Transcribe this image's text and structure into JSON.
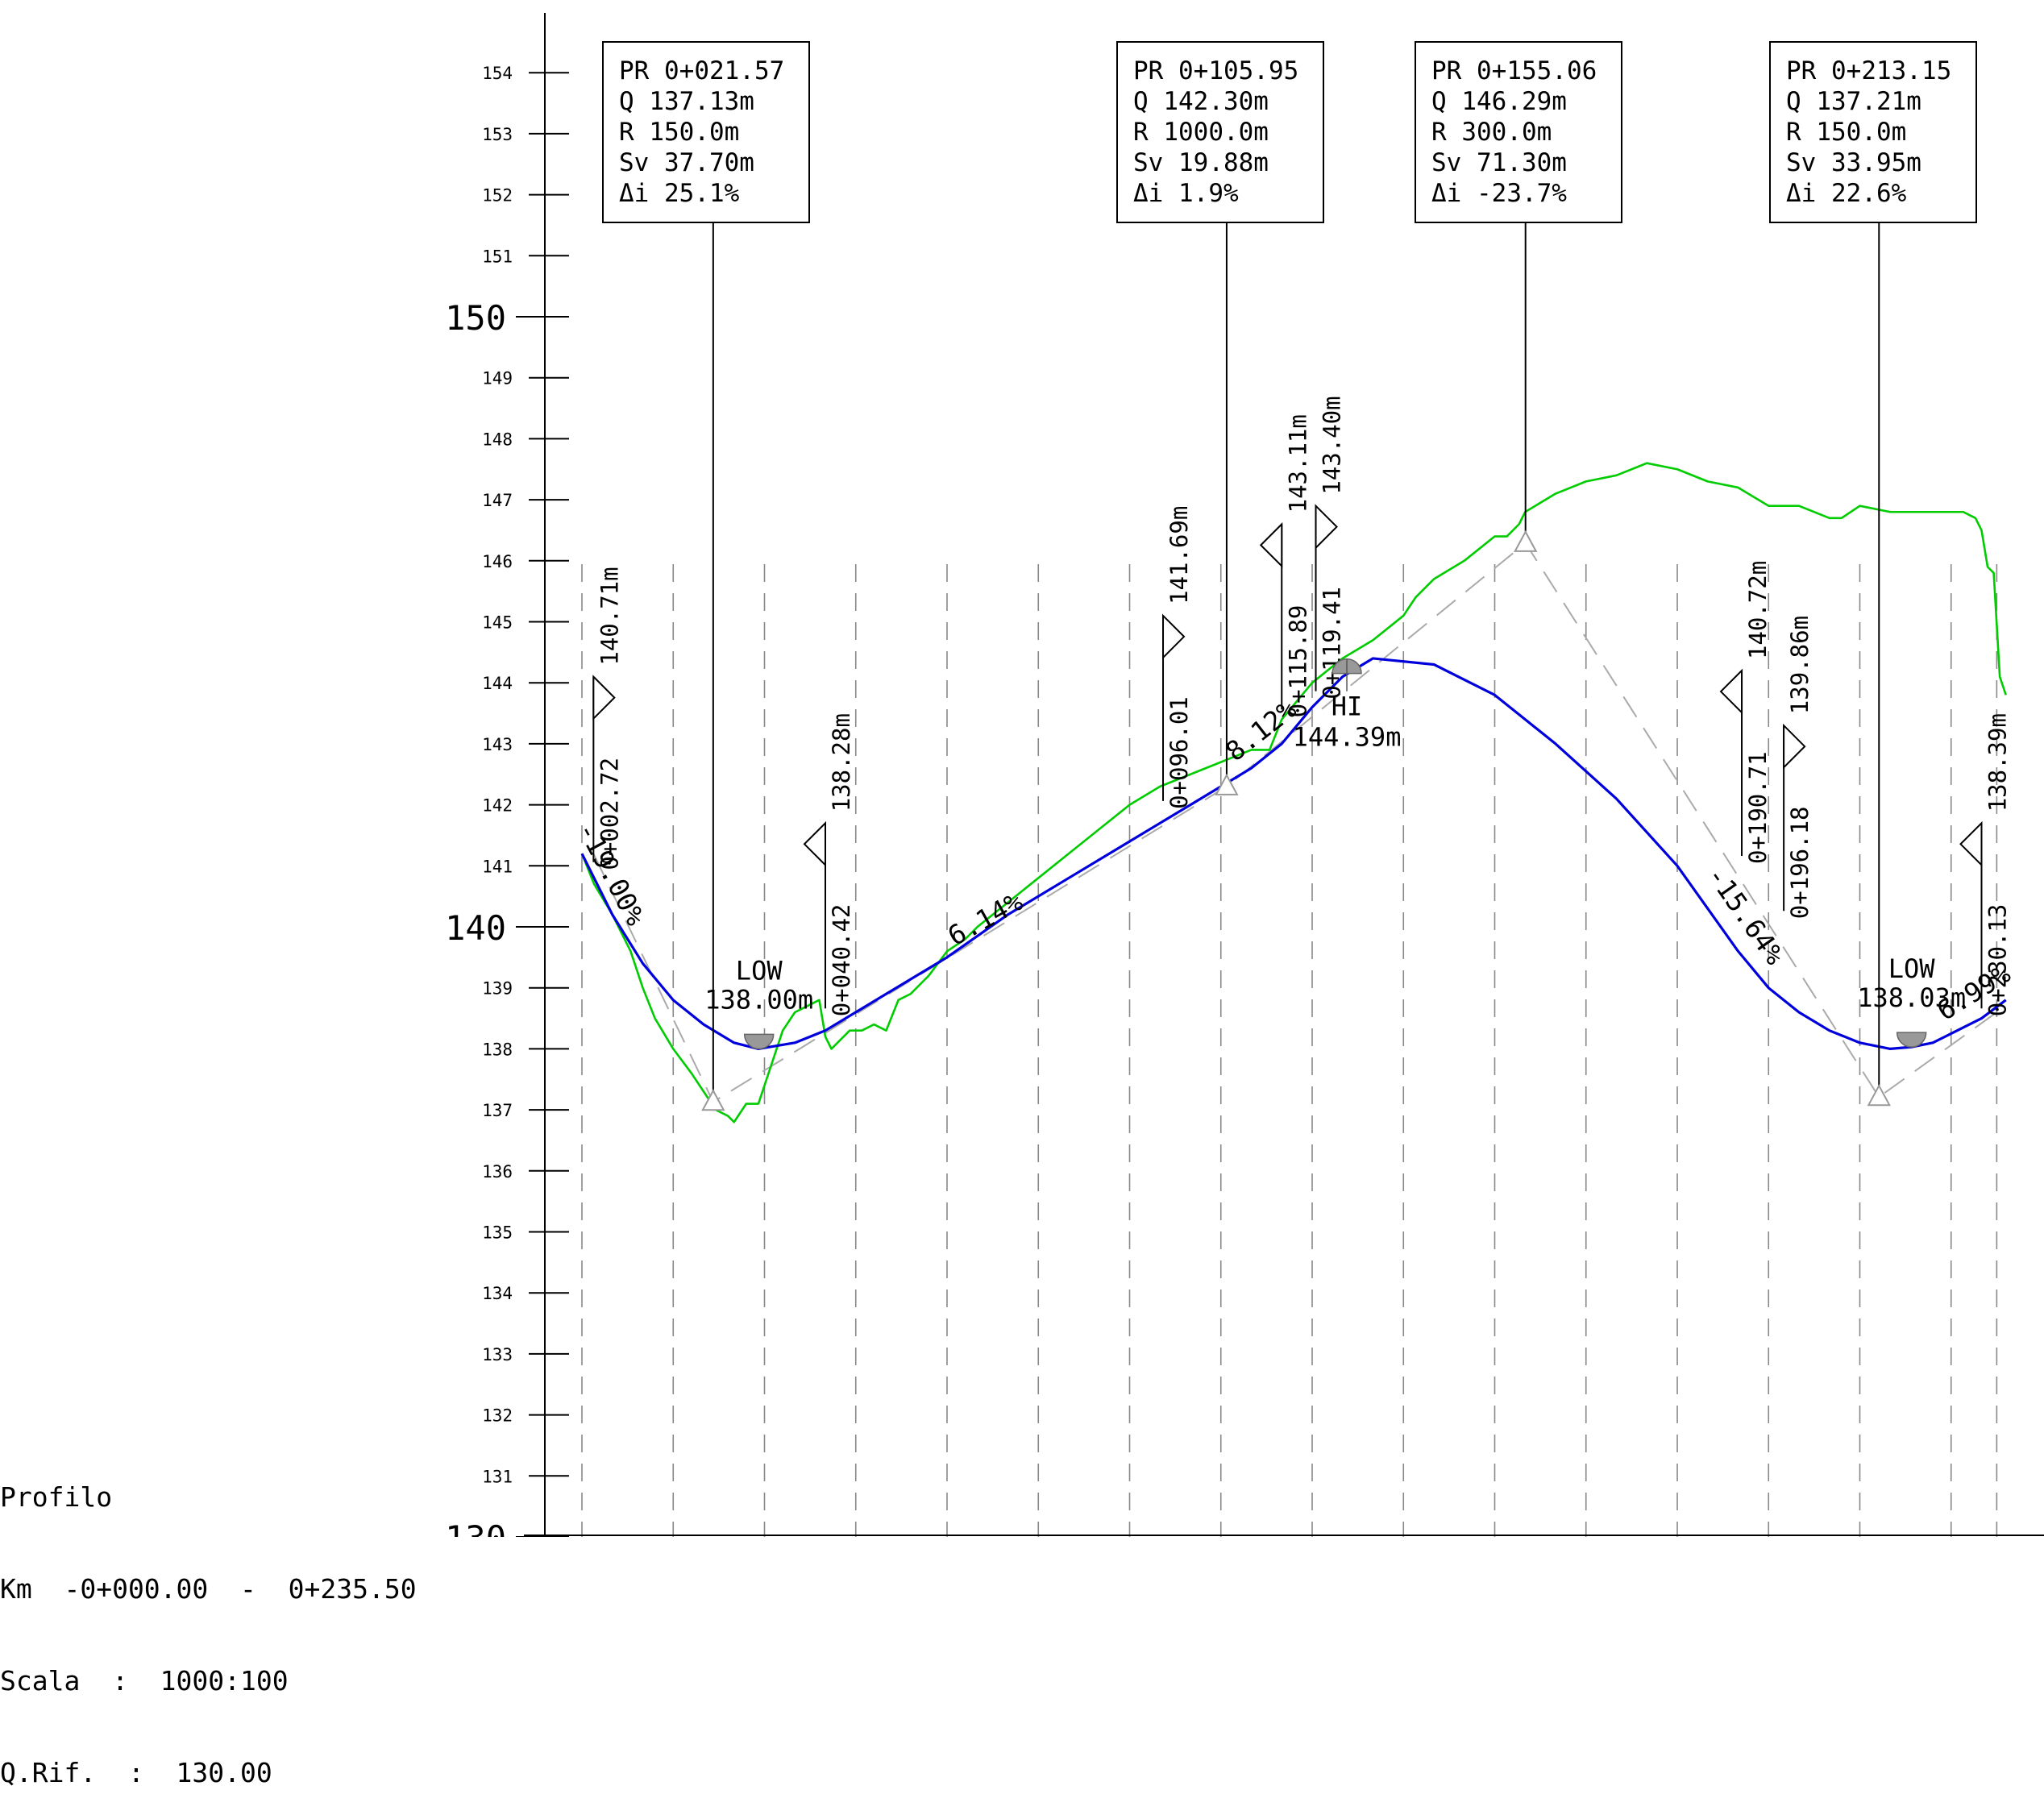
{
  "info": {
    "title": "Profilo",
    "km_line": "Km  -0+000.00  -  0+235.50",
    "scale_line": "Scala  :  1000:100",
    "ref_line": "Q.Rif.  :  130.00"
  },
  "axis": {
    "ticks": [
      130,
      131,
      132,
      133,
      134,
      135,
      136,
      137,
      138,
      139,
      140,
      141,
      142,
      143,
      144,
      145,
      146,
      147,
      148,
      149,
      150,
      151,
      152,
      153,
      154
    ],
    "major_ticks": [
      130,
      140,
      150
    ],
    "range": [
      130,
      155
    ]
  },
  "station_gridlines": [
    0,
    15,
    30,
    45,
    60,
    75,
    90,
    105,
    120,
    135,
    150,
    165,
    180,
    195,
    210,
    225,
    232.5
  ],
  "curve_boxes": [
    {
      "pr": "PR  0+021.57",
      "q": "Q   137.13m",
      "r": "R   150.0m",
      "sv": "Sv  37.70m",
      "di": "Δi  25.1%",
      "station": 21.57,
      "elev": 137.13
    },
    {
      "pr": "PR  0+105.95",
      "q": "Q   142.30m",
      "r": "R   1000.0m",
      "sv": "Sv  19.88m",
      "di": "Δi  1.9%",
      "station": 105.95,
      "elev": 142.3
    },
    {
      "pr": "PR  0+155.06",
      "q": "Q   146.29m",
      "r": "R   300.0m",
      "sv": "Sv  71.30m",
      "di": "Δi  -23.7%",
      "station": 155.06,
      "elev": 146.29
    },
    {
      "pr": "PR  0+213.15",
      "q": "Q   137.21m",
      "r": "R   150.0m",
      "sv": "Sv  33.95m",
      "di": "Δi  22.6%",
      "station": 213.15,
      "elev": 137.21
    }
  ],
  "tangent_points": [
    {
      "station_label": "0+002.72",
      "elev_label": "140.71m",
      "station": 1.9,
      "dir": "right",
      "flag_elev": 144.1
    },
    {
      "station_label": "0+040.42",
      "elev_label": "138.28m",
      "station": 40.0,
      "dir": "left",
      "flag_elev": 141.7
    },
    {
      "station_label": "0+096.01",
      "elev_label": "141.69m",
      "station": 95.5,
      "dir": "right",
      "flag_elev": 145.1
    },
    {
      "station_label": "0+115.89",
      "elev_label": "143.11m",
      "station": 115.0,
      "dir": "left",
      "flag_elev": 146.6
    },
    {
      "station_label": "0+119.41",
      "elev_label": "143.40m",
      "station": 120.6,
      "dir": "right",
      "flag_elev": 146.9
    },
    {
      "station_label": "0+190.71",
      "elev_label": "140.72m",
      "station": 190.6,
      "dir": "left",
      "flag_elev": 144.2
    },
    {
      "station_label": "0+196.18",
      "elev_label": "139.86m",
      "station": 197.5,
      "dir": "right",
      "flag_elev": 143.3
    },
    {
      "station_label": "0+230.13",
      "elev_label": "138.39m",
      "station": 230.0,
      "dir": "left",
      "flag_elev": 141.7
    }
  ],
  "extremes": [
    {
      "type": "LOW",
      "value": "138.00m",
      "station": 29.1,
      "elev": 138.0
    },
    {
      "type": "HI",
      "value": "144.39m",
      "station": 125.7,
      "elev": 144.39
    },
    {
      "type": "LOW",
      "value": "138.03m",
      "station": 218.5,
      "elev": 138.03
    }
  ],
  "grade_labels": [
    {
      "text": "-19.00%",
      "station": 3.5,
      "elev": 140.8,
      "angle": 62
    },
    {
      "text": "6.14%",
      "station": 67.0,
      "elev": 140.0,
      "angle": -29
    },
    {
      "text": "8.12%",
      "station": 112.5,
      "elev": 143.1,
      "angle": -38
    },
    {
      "text": "-15.64%",
      "station": 190.0,
      "elev": 140.1,
      "angle": 55
    },
    {
      "text": "6.99%",
      "station": 229.5,
      "elev": 138.8,
      "angle": -32
    }
  ],
  "colors": {
    "axis": "#000000",
    "ground": "#00cc00",
    "design": "#0000dd",
    "tangent": "#aaaaaa",
    "grid": "#888888",
    "marker": "#999999"
  },
  "chart_data": {
    "type": "line",
    "xlabel": "",
    "ylabel": "",
    "ylim": [
      130,
      155
    ],
    "xlim": [
      -0.0,
      235.5
    ],
    "series": [
      {
        "name": "",
        "role": "ground profile",
        "x": [
          0,
          2,
          5,
          8,
          10,
          12,
          15,
          18,
          20,
          22,
          24,
          25,
          27,
          29,
          31,
          33,
          35,
          37,
          39,
          40,
          41,
          42,
          44,
          46,
          48,
          50,
          52,
          54,
          56,
          57,
          60,
          63,
          65,
          70,
          75,
          80,
          85,
          90,
          95,
          100,
          105,
          110,
          113,
          115,
          120,
          125,
          130,
          135,
          137,
          140,
          145,
          150,
          152,
          154,
          155,
          160,
          165,
          170,
          175,
          180,
          185,
          190,
          195,
          200,
          205,
          207,
          210,
          215,
          220,
          225,
          227,
          229,
          230,
          231,
          232,
          233,
          234
        ],
        "y": [
          141.2,
          140.7,
          140.2,
          139.6,
          139.0,
          138.5,
          138.0,
          137.6,
          137.3,
          137.0,
          136.9,
          136.8,
          137.1,
          137.1,
          137.7,
          138.3,
          138.6,
          138.7,
          138.8,
          138.2,
          138.0,
          138.1,
          138.3,
          138.3,
          138.4,
          138.3,
          138.8,
          138.9,
          139.1,
          139.2,
          139.6,
          139.8,
          140.0,
          140.4,
          140.8,
          141.2,
          141.6,
          142.0,
          142.3,
          142.5,
          142.7,
          142.9,
          142.9,
          143.4,
          144.0,
          144.4,
          144.7,
          145.1,
          145.4,
          145.7,
          146.0,
          146.4,
          146.4,
          146.6,
          146.8,
          147.1,
          147.3,
          147.4,
          147.6,
          147.5,
          147.3,
          147.2,
          146.9,
          146.9,
          146.7,
          146.7,
          146.9,
          146.8,
          146.8,
          146.8,
          146.8,
          146.7,
          146.5,
          145.9,
          145.8,
          144.1,
          143.8
        ]
      },
      {
        "name": "",
        "role": "design grade line",
        "x": [
          0,
          5,
          10,
          15,
          20,
          25,
          29,
          35,
          40,
          50,
          60,
          70,
          80,
          90,
          95,
          100,
          105,
          110,
          115,
          120,
          125,
          130,
          140,
          150,
          160,
          170,
          180,
          185,
          190,
          195,
          200,
          205,
          210,
          215,
          218.5,
          222,
          226,
          230,
          234
        ],
        "y": [
          141.2,
          140.2,
          139.4,
          138.8,
          138.4,
          138.1,
          138.0,
          138.1,
          138.3,
          138.9,
          139.5,
          140.2,
          140.8,
          141.4,
          141.7,
          142.0,
          142.3,
          142.6,
          143.0,
          143.6,
          144.1,
          144.4,
          144.3,
          143.8,
          143.0,
          142.1,
          141.0,
          140.3,
          139.6,
          139.0,
          138.6,
          138.3,
          138.1,
          138.0,
          138.03,
          138.1,
          138.3,
          138.5,
          138.8
        ]
      }
    ],
    "tangent_polygon": {
      "x": [
        1.9,
        21.57,
        40.0,
        105.95,
        155.06,
        213.15,
        232.5
      ],
      "y": [
        141.2,
        137.13,
        138.26,
        142.3,
        146.29,
        137.21,
        138.6
      ]
    }
  }
}
